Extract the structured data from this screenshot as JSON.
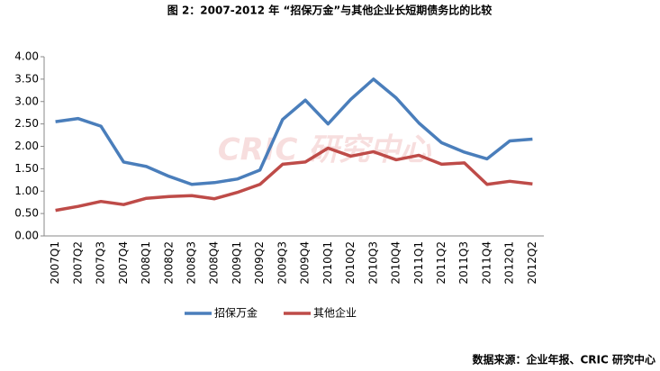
{
  "chart_data": {
    "type": "line",
    "title": "图 2：2007-2012 年 “招保万金”与其他企业长短期债务比的比较",
    "categories": [
      "2007Q1",
      "2007Q2",
      "2007Q3",
      "2007Q4",
      "2008Q1",
      "2008Q2",
      "2008Q3",
      "2008Q4",
      "2009Q1",
      "2009Q2",
      "2009Q3",
      "2009Q4",
      "2010Q1",
      "2010Q2",
      "2010Q3",
      "2010Q4",
      "2011Q1",
      "2011Q2",
      "2011Q3",
      "2011Q4",
      "2012Q1",
      "2012Q2"
    ],
    "series": [
      {
        "name": "招保万金",
        "color": "#4a7ebb",
        "values": [
          2.55,
          2.62,
          2.45,
          1.65,
          1.55,
          1.33,
          1.15,
          1.19,
          1.27,
          1.47,
          2.6,
          3.03,
          2.5,
          3.05,
          3.5,
          3.08,
          2.52,
          2.08,
          1.87,
          1.72,
          2.12,
          2.16
        ]
      },
      {
        "name": "其他企业",
        "color": "#be4b48",
        "values": [
          0.57,
          0.66,
          0.77,
          0.7,
          0.84,
          0.88,
          0.9,
          0.83,
          0.97,
          1.15,
          1.6,
          1.65,
          1.96,
          1.78,
          1.88,
          1.7,
          1.8,
          1.6,
          1.63,
          1.15,
          1.22,
          1.16
        ]
      }
    ],
    "ylim": [
      0,
      4
    ],
    "yticks": [
      {
        "value": 0,
        "label": "0.00"
      },
      {
        "value": 0.5,
        "label": "0.50"
      },
      {
        "value": 1,
        "label": "1.00"
      },
      {
        "value": 1.5,
        "label": "1.50"
      },
      {
        "value": 2,
        "label": "2.00"
      },
      {
        "value": 2.5,
        "label": "2.50"
      },
      {
        "value": 3,
        "label": "3.00"
      },
      {
        "value": 3.5,
        "label": "3.50"
      },
      {
        "value": 4,
        "label": "4.00"
      }
    ],
    "grid": false,
    "watermark": "CRIC 研究中心",
    "source": "数据来源：企业年报、CRIC 研究中心"
  }
}
